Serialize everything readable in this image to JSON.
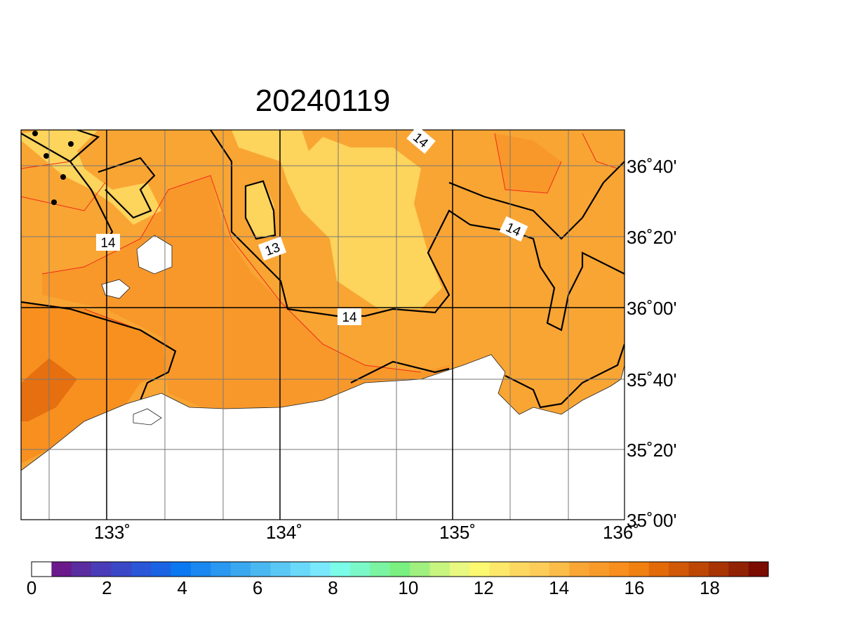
{
  "title": "20240119",
  "map": {
    "lon_labels": [
      "133˚",
      "134˚",
      "135˚",
      "136˚"
    ],
    "lat_labels": [
      "36˚40'",
      "36˚20'",
      "36˚00'",
      "35˚40'",
      "35˚20'",
      "35˚00'"
    ],
    "contour_labels": [
      "14",
      "13",
      "14",
      "14",
      "14"
    ]
  },
  "colorbar": {
    "ticks": [
      0,
      2,
      4,
      6,
      8,
      10,
      12,
      14,
      16,
      18
    ],
    "colors": [
      "#ffffff",
      "#6a1a8a",
      "#5a2ea0",
      "#4a3cb8",
      "#3a48c8",
      "#2a56d8",
      "#1a64e4",
      "#0a78f0",
      "#1a88f0",
      "#2a98f0",
      "#3aa8f0",
      "#4ab8f0",
      "#5ac8f4",
      "#6ad8f8",
      "#7ae8fc",
      "#7afce8",
      "#7af8c8",
      "#7af4a0",
      "#7af080",
      "#a0f080",
      "#c8f480",
      "#e8f880",
      "#fcf870",
      "#fde86a",
      "#fdd860",
      "#fdcc58",
      "#fbbc48",
      "#f9a635",
      "#f89a2a",
      "#f78e1e",
      "#f08010",
      "#e26a08",
      "#d05806",
      "#be4604",
      "#a83404",
      "#922204",
      "#7a0c02"
    ]
  }
}
